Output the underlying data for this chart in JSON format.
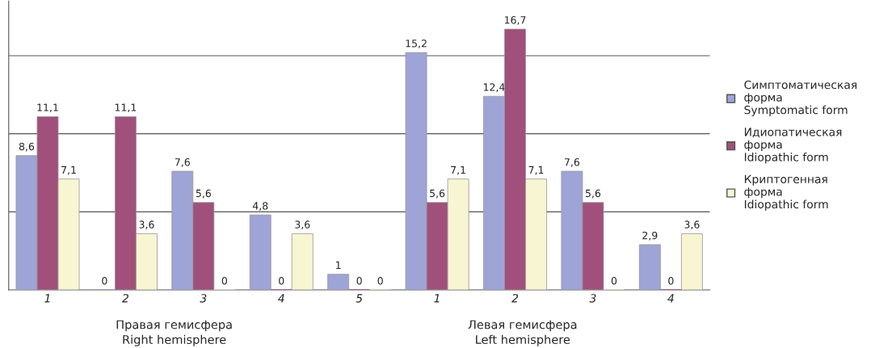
{
  "chart_data": {
    "type": "bar",
    "categories": [
      "1",
      "2",
      "3",
      "4",
      "5",
      "1",
      "2",
      "3",
      "4"
    ],
    "series": [
      {
        "name": "Симптоматическая\nформа\nSymptomatic form",
        "color": "#9ea4d6",
        "values": [
          8.6,
          0,
          7.6,
          4.8,
          1,
          15.2,
          12.4,
          7.6,
          2.9
        ],
        "value_labels": [
          "8,6",
          "0",
          "7,6",
          "4,8",
          "1",
          "15,2",
          "12,4",
          "7,6",
          "2,9"
        ]
      },
      {
        "name": "Идиопатическая\nформа\nIdiopathic form",
        "color": "#a0507a",
        "values": [
          11.1,
          11.1,
          5.6,
          0,
          0,
          5.6,
          16.7,
          5.6,
          0
        ],
        "value_labels": [
          "11,1",
          "11,1",
          "5,6",
          "0",
          "0",
          "5,6",
          "16,7",
          "5,6",
          "0"
        ]
      },
      {
        "name": "Криптогенная\nформа\nIdiopathic form",
        "color": "#f8f5d2",
        "values": [
          7.1,
          3.6,
          0,
          3.6,
          0,
          7.1,
          7.1,
          0,
          3.6
        ],
        "value_labels": [
          "7,1",
          "3,6",
          "0",
          "3,6",
          "0",
          "7,1",
          "7,1",
          "0",
          "3,6"
        ]
      }
    ],
    "ylim": [
      0,
      18.5
    ],
    "yticks": [
      {
        "value": 5,
        "label": null
      },
      {
        "value": 10,
        "label": null
      },
      {
        "value": 15,
        "label": null
      }
    ],
    "tick_labels": "x",
    "grid": "y",
    "legend": "right",
    "annotations": [
      "Правая гемисфера\nRight hemisphere",
      "Левая гемисфера\nLeft hemisphere"
    ]
  }
}
